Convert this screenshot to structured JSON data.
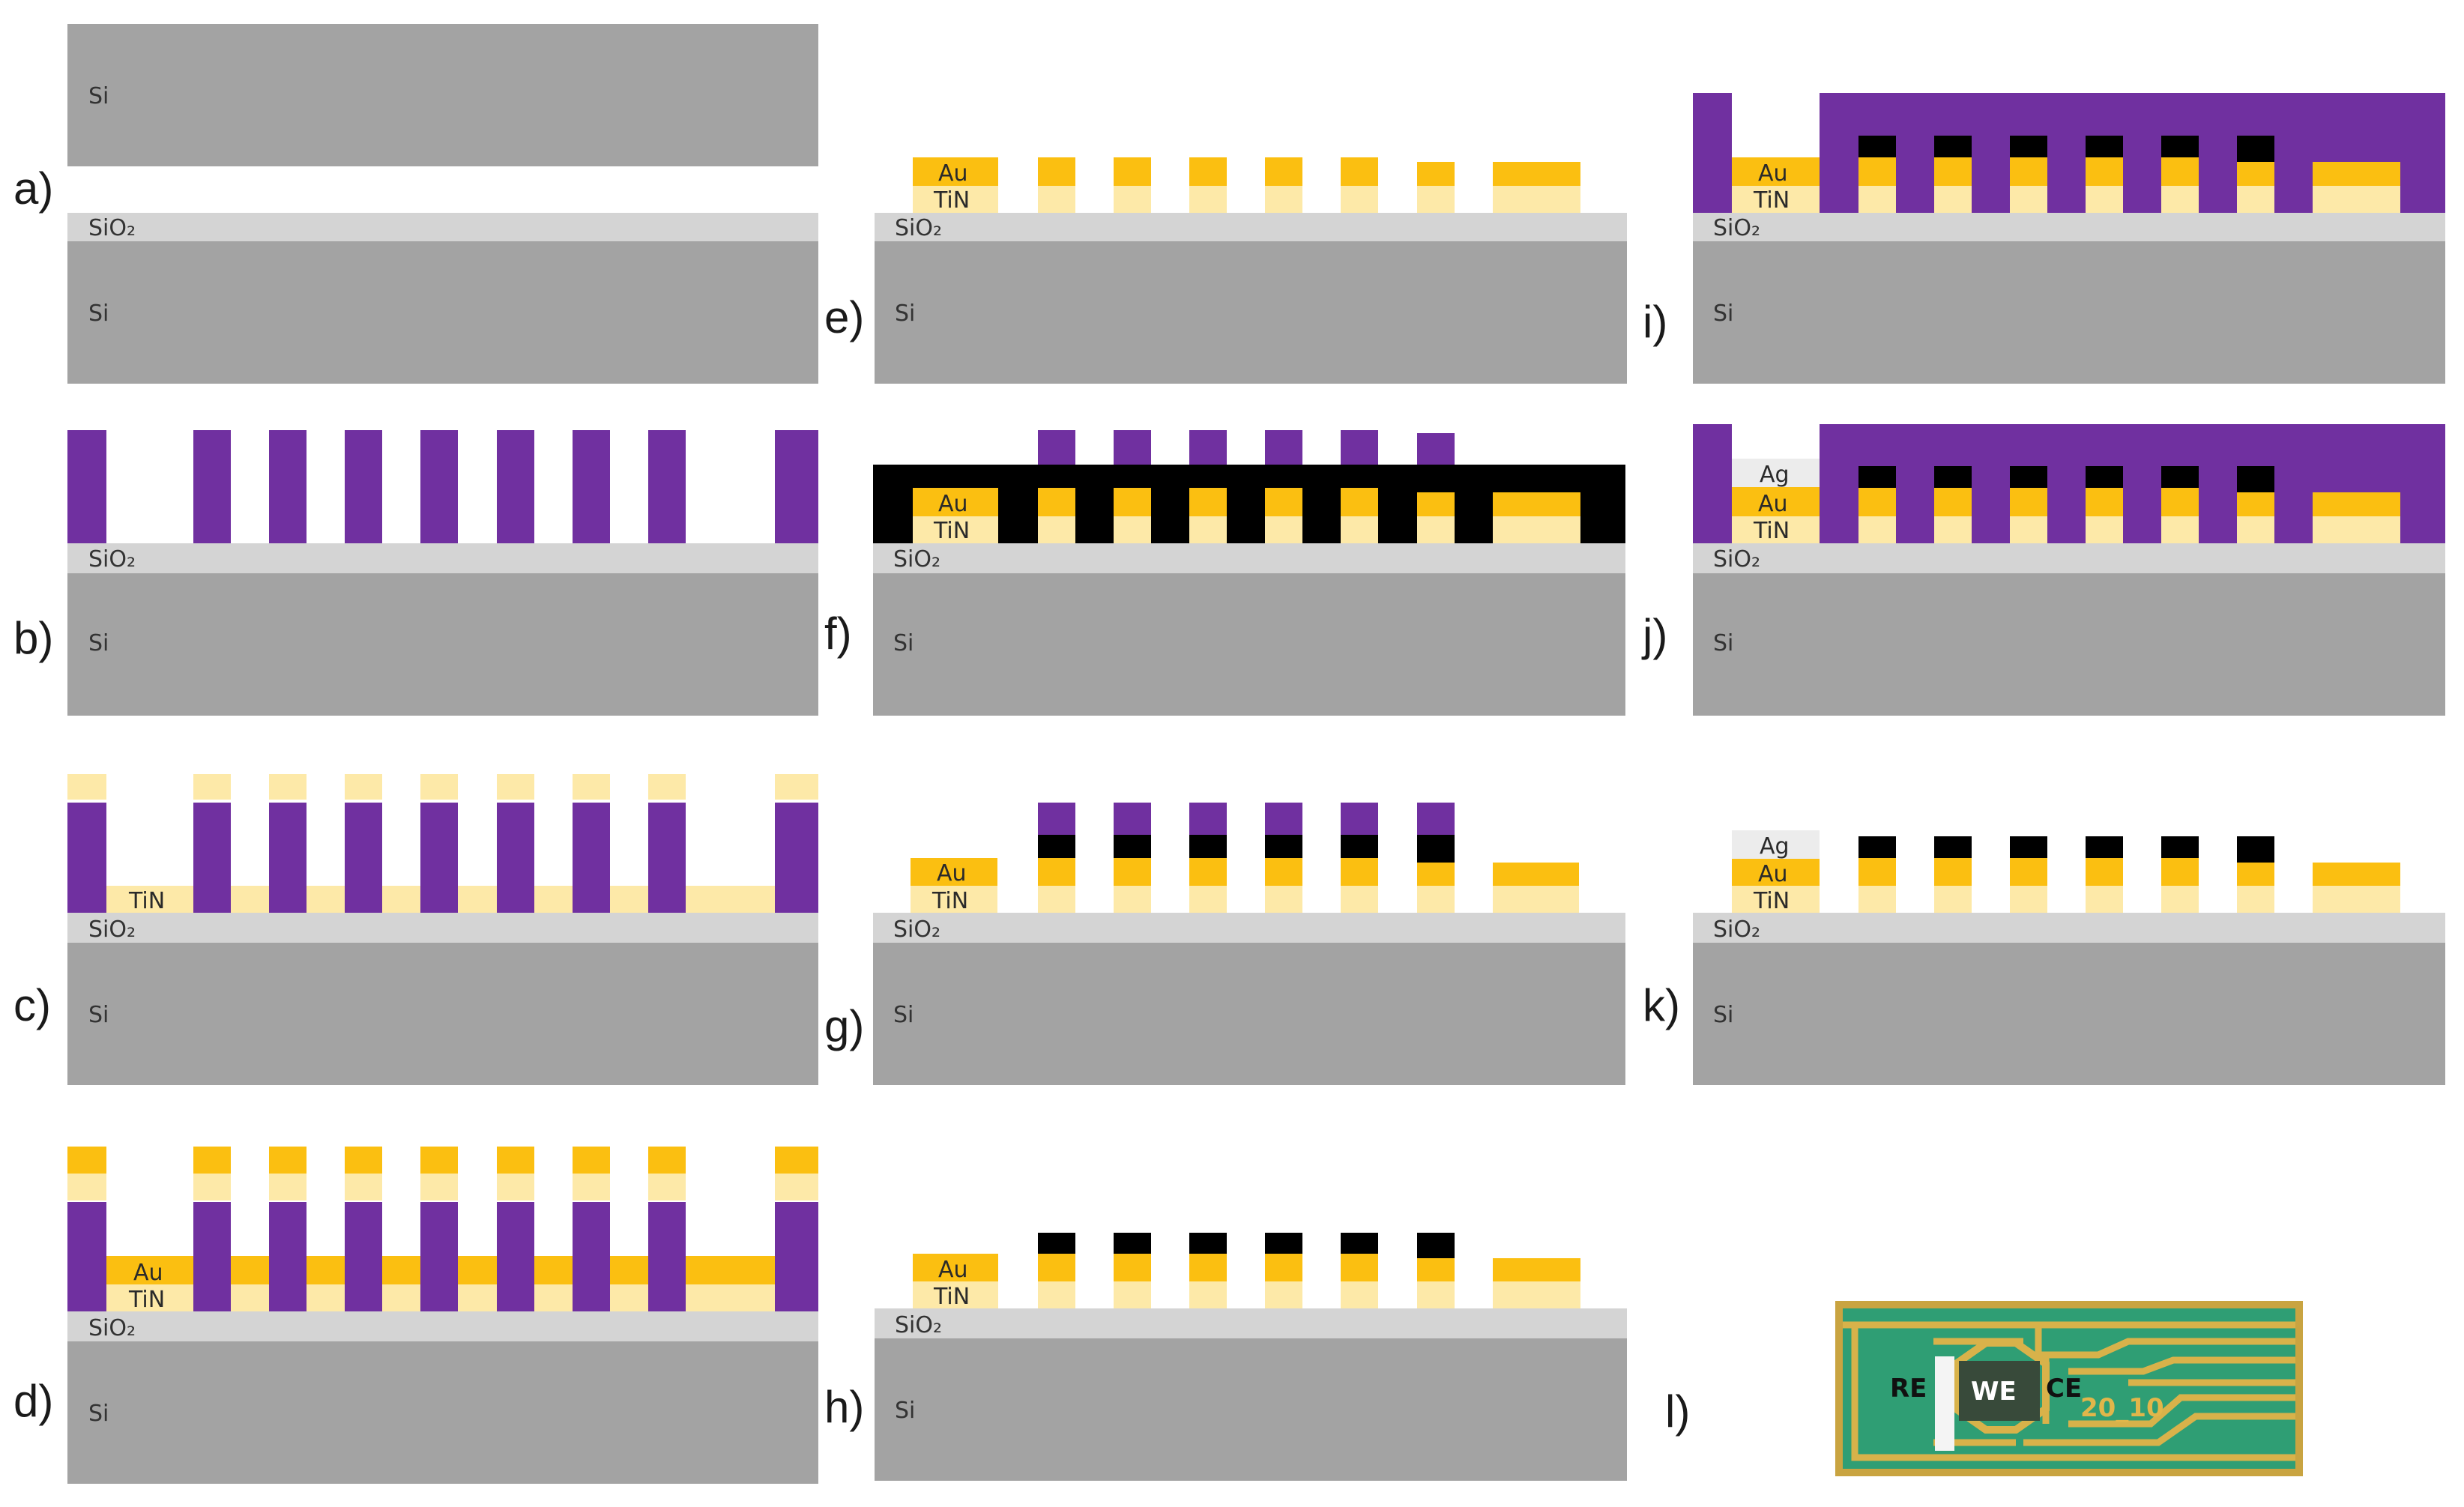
{
  "panels": [
    {
      "letter": "a)"
    },
    {
      "letter": "b)"
    },
    {
      "letter": "c)"
    },
    {
      "letter": "d)"
    },
    {
      "letter": "e)"
    },
    {
      "letter": "f)"
    },
    {
      "letter": "g)"
    },
    {
      "letter": "h)"
    },
    {
      "letter": "i)"
    },
    {
      "letter": "j)"
    },
    {
      "letter": "k)"
    },
    {
      "letter": "l)"
    }
  ],
  "labels": {
    "si": "Si",
    "sio2": "SiO₂",
    "tin": "TiN",
    "au": "Au",
    "ag": "Ag"
  },
  "chip": {
    "re": "RE",
    "we": "WE",
    "ce": "CE",
    "code": "20_10"
  },
  "colors": {
    "si": "#a3a3a3",
    "sio2": "#d4d4d4",
    "photoresist": "#7030a0",
    "tin": "#fde9a8",
    "au": "#fbbf11",
    "black": "#000000",
    "ag": "#ececec",
    "chip_green": "#2f9e74",
    "chip_trace": "#d8b24a",
    "chip_we": "#384a3a"
  }
}
